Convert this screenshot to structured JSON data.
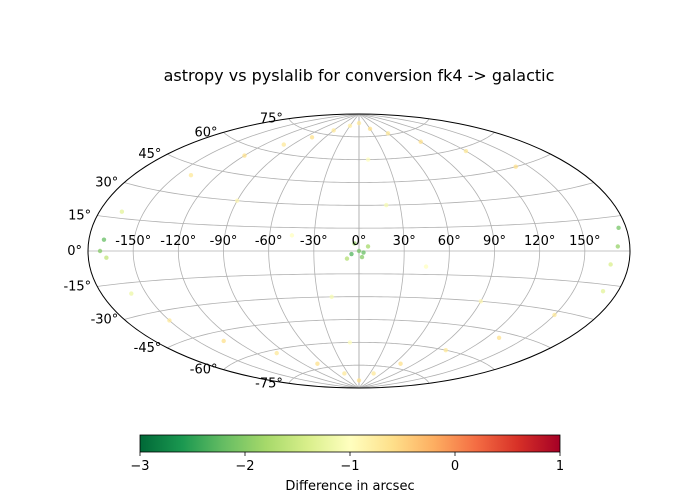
{
  "chart_data": {
    "type": "scatter",
    "projection": "aitoff",
    "title": "astropy vs pyslalib for conversion fk4 -> galactic",
    "grid": true,
    "x_ticks": [
      "-150°",
      "-120°",
      "-90°",
      "-60°",
      "-30°",
      "0°",
      "30°",
      "60°",
      "90°",
      "120°",
      "150°"
    ],
    "x_tick_values": [
      -150,
      -120,
      -90,
      -60,
      -30,
      0,
      30,
      60,
      90,
      120,
      150
    ],
    "y_ticks": [
      "-75°",
      "-60°",
      "-45°",
      "-30°",
      "-15°",
      "0°",
      "15°",
      "30°",
      "45°",
      "60°",
      "75°"
    ],
    "y_tick_values": [
      -75,
      -60,
      -45,
      -30,
      -15,
      0,
      15,
      30,
      45,
      60,
      75
    ],
    "xlim": [
      -180,
      180
    ],
    "ylim": [
      -90,
      90
    ],
    "colorbar": {
      "label": "Difference in arcsec",
      "colormap": "RdYlGn_r",
      "range": [
        -3,
        1
      ],
      "ticks": [
        "−3",
        "−2",
        "−1",
        "0",
        "1"
      ],
      "tick_values": [
        -3,
        -2,
        -1,
        0,
        1
      ],
      "orientation": "horizontal"
    },
    "series": [
      {
        "points": [
          [
            -170,
            5,
            -2.2
          ],
          [
            -172,
            0,
            -2.0
          ],
          [
            -168,
            -3,
            -1.6
          ],
          [
            -165,
            18,
            -1.3
          ],
          [
            -160,
            -20,
            -1.2
          ],
          [
            175,
            10,
            -2.1
          ],
          [
            172,
            2,
            -1.9
          ],
          [
            168,
            -6,
            -1.4
          ],
          [
            170,
            -18,
            -1.3
          ],
          [
            -5,
            -2,
            -2.3
          ],
          [
            2,
            -4,
            -2.0
          ],
          [
            0,
            0,
            -2.1
          ],
          [
            -3,
            5,
            -1.9
          ],
          [
            3,
            -1,
            -2.2
          ],
          [
            6,
            3,
            -1.8
          ],
          [
            -8,
            -5,
            -1.7
          ],
          [
            -140,
            40,
            -0.7
          ],
          [
            -120,
            55,
            -0.6
          ],
          [
            -100,
            65,
            -0.7
          ],
          [
            -80,
            72,
            -0.6
          ],
          [
            -60,
            78,
            -0.7
          ],
          [
            -30,
            82,
            -0.8
          ],
          [
            0,
            84,
            -0.7
          ],
          [
            30,
            80,
            -0.6
          ],
          [
            60,
            76,
            -0.7
          ],
          [
            90,
            68,
            -0.6
          ],
          [
            120,
            58,
            -0.7
          ],
          [
            140,
            45,
            -0.6
          ],
          [
            -150,
            -35,
            -0.7
          ],
          [
            -130,
            -50,
            -0.6
          ],
          [
            -100,
            -62,
            -0.7
          ],
          [
            -70,
            -72,
            -0.6
          ],
          [
            -40,
            -80,
            -0.7
          ],
          [
            0,
            -85,
            -0.6
          ],
          [
            40,
            -80,
            -0.7
          ],
          [
            70,
            -72,
            -0.6
          ],
          [
            100,
            -60,
            -0.7
          ],
          [
            130,
            -48,
            -0.6
          ],
          [
            150,
            -32,
            -0.7
          ],
          [
            -90,
            30,
            -0.9
          ],
          [
            90,
            -30,
            -0.9
          ],
          [
            -45,
            10,
            -1.0
          ],
          [
            45,
            -10,
            -1.0
          ],
          [
            20,
            30,
            -1.1
          ],
          [
            -20,
            -30,
            -1.1
          ],
          [
            10,
            60,
            -1.0
          ],
          [
            -10,
            -60,
            -1.0
          ]
        ]
      }
    ]
  }
}
